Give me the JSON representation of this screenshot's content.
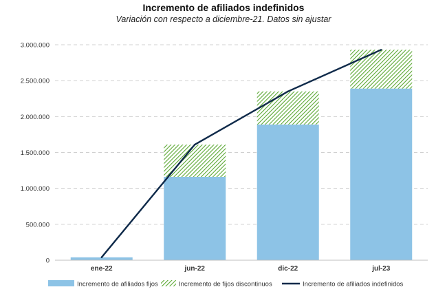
{
  "chart_data": {
    "type": "bar",
    "title": "Incremento de afiliados indefinidos",
    "subtitle": "Variación con respecto a diciembre-21. Datos sin ajustar",
    "categories": [
      "ene-22",
      "jun-22",
      "dic-22",
      "jul-23"
    ],
    "series": [
      {
        "name": "Incremento de afiliados fijos",
        "kind": "bar-stacked",
        "color": "#8dc3e6",
        "values": [
          40000,
          1160000,
          1890000,
          2390000
        ]
      },
      {
        "name": "Incremento de fijos discontinuos",
        "kind": "bar-stacked-hatched",
        "color": "#5aa832",
        "values": [
          0,
          450000,
          460000,
          540000
        ]
      },
      {
        "name": "Incremento de afiliados indefinidos",
        "kind": "line",
        "color": "#0f2a4a",
        "values": [
          40000,
          1610000,
          2350000,
          2930000
        ]
      }
    ],
    "yaxis": {
      "min": 0,
      "max": 3000000,
      "ticks": [
        0,
        500000,
        1000000,
        1500000,
        2000000,
        2500000,
        3000000
      ],
      "tick_labels": [
        "0",
        "500.000",
        "1.000.000",
        "1.500.000",
        "2.000.000",
        "2.500.000",
        "3.000.000"
      ]
    },
    "grid": "horizontal-dashed",
    "legend_position": "bottom"
  }
}
